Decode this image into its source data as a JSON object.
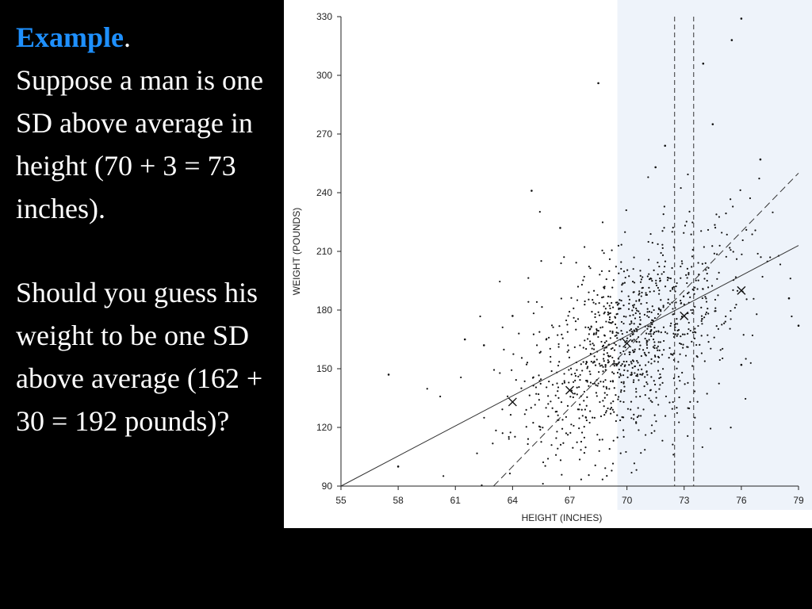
{
  "slide": {
    "heading": "Example",
    "heading_punct": ".",
    "paragraph1": "Suppose a man is one SD above average in height (70 + 3 = 73 inches).",
    "paragraph2": "Should you guess his weight to be one SD above average (162 + 30 = 192 pounds)?",
    "heading_color": "#1E90FF",
    "text_color": "#FFFFFF",
    "background_color": "#000000"
  },
  "chart_data": {
    "type": "scatter",
    "xlabel": "HEIGHT (INCHES)",
    "ylabel": "WEIGHT (POUNDS)",
    "xlim": [
      55,
      79
    ],
    "ylim": [
      90,
      330
    ],
    "x_ticks": [
      55,
      58,
      61,
      64,
      67,
      70,
      73,
      76,
      79
    ],
    "y_ticks": [
      90,
      120,
      150,
      180,
      210,
      240,
      270,
      300,
      330
    ],
    "grid": false,
    "shaded_band": {
      "x_from": 69.5,
      "x_to": 79
    },
    "vertical_dashed_lines": [
      72.5,
      73.5
    ],
    "regression_line": {
      "x": [
        55,
        79
      ],
      "y": [
        90,
        213
      ]
    },
    "sd_line": {
      "x": [
        63,
        79
      ],
      "y": [
        90,
        250
      ]
    },
    "x_markers": [
      {
        "x": 64,
        "y": 133
      },
      {
        "x": 67,
        "y": 139
      },
      {
        "x": 70,
        "y": 163
      },
      {
        "x": 73,
        "y": 177
      },
      {
        "x": 76,
        "y": 190
      }
    ],
    "point_cloud": {
      "n": 1078,
      "mean_height": 70,
      "sd_height": 3,
      "mean_weight": 162,
      "sd_weight": 30,
      "r": 0.5
    },
    "outliers": [
      {
        "x": 58,
        "y": 100
      },
      {
        "x": 57.5,
        "y": 147
      },
      {
        "x": 61.5,
        "y": 165
      },
      {
        "x": 62.5,
        "y": 162
      },
      {
        "x": 64,
        "y": 177
      },
      {
        "x": 65,
        "y": 241
      },
      {
        "x": 66.5,
        "y": 222
      },
      {
        "x": 68.5,
        "y": 296
      },
      {
        "x": 71.5,
        "y": 253
      },
      {
        "x": 72,
        "y": 264
      },
      {
        "x": 74,
        "y": 306
      },
      {
        "x": 75.5,
        "y": 318
      },
      {
        "x": 76,
        "y": 329
      },
      {
        "x": 77,
        "y": 257
      },
      {
        "x": 78.5,
        "y": 186
      },
      {
        "x": 79,
        "y": 172
      },
      {
        "x": 76,
        "y": 152
      },
      {
        "x": 74.5,
        "y": 275
      }
    ],
    "colors": {
      "points": "#111111",
      "lines": "#333333",
      "band": "#EEF3FA"
    }
  }
}
